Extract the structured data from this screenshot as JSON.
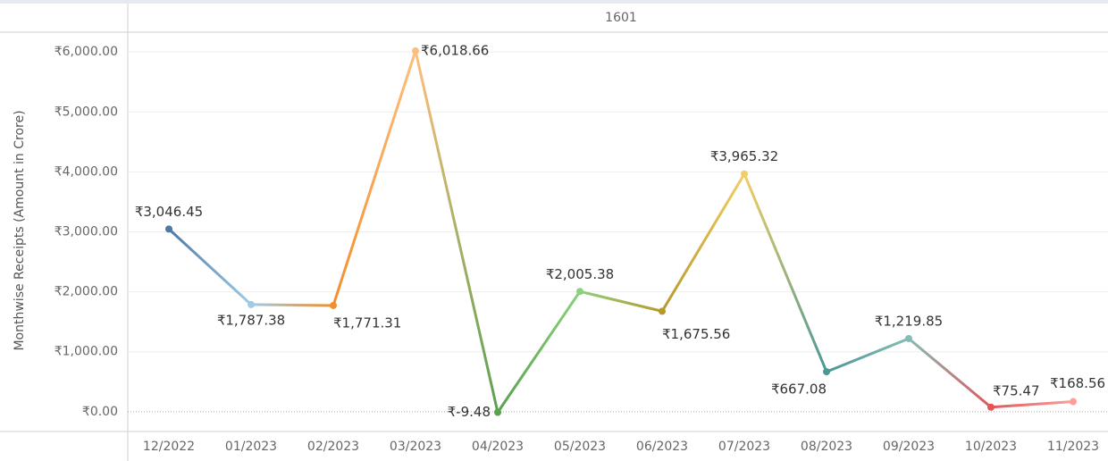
{
  "chart_data": {
    "type": "line",
    "header": "1601",
    "ylabel": "Monthwise Receipts (Amount in Crore)",
    "categories": [
      "12/2022",
      "01/2023",
      "02/2023",
      "03/2023",
      "04/2023",
      "05/2023",
      "06/2023",
      "07/2023",
      "08/2023",
      "09/2023",
      "10/2023",
      "11/2023"
    ],
    "values": [
      3046.45,
      1787.38,
      1771.31,
      6018.66,
      -9.48,
      2005.38,
      1675.56,
      3965.32,
      667.08,
      1219.85,
      75.47,
      168.56
    ],
    "value_labels": [
      "₹3,046.45",
      "₹1,787.38",
      "₹1,771.31",
      "₹6,018.66",
      "₹-9.48",
      "₹2,005.38",
      "₹1,675.56",
      "₹3,965.32",
      "₹667.08",
      "₹1,219.85",
      "₹75.47",
      "₹168.56"
    ],
    "colors": [
      "#4e79a7",
      "#a0cbe8",
      "#f28e2b",
      "#ffbe7d",
      "#59a14f",
      "#8cd17d",
      "#b6992d",
      "#f1ce63",
      "#499894",
      "#86bcb6",
      "#e15759",
      "#ff9d9a"
    ],
    "ylim": [
      -330,
      6330
    ],
    "yticks": [
      {
        "value": 0,
        "label": "₹0.00"
      },
      {
        "value": 1000,
        "label": "₹1,000.00"
      },
      {
        "value": 2000,
        "label": "₹2,000.00"
      },
      {
        "value": 3000,
        "label": "₹3,000.00"
      },
      {
        "value": 4000,
        "label": "₹4,000.00"
      },
      {
        "value": 5000,
        "label": "₹5,000.00"
      },
      {
        "value": 6000,
        "label": "₹6,000.00"
      }
    ],
    "grid": true
  }
}
